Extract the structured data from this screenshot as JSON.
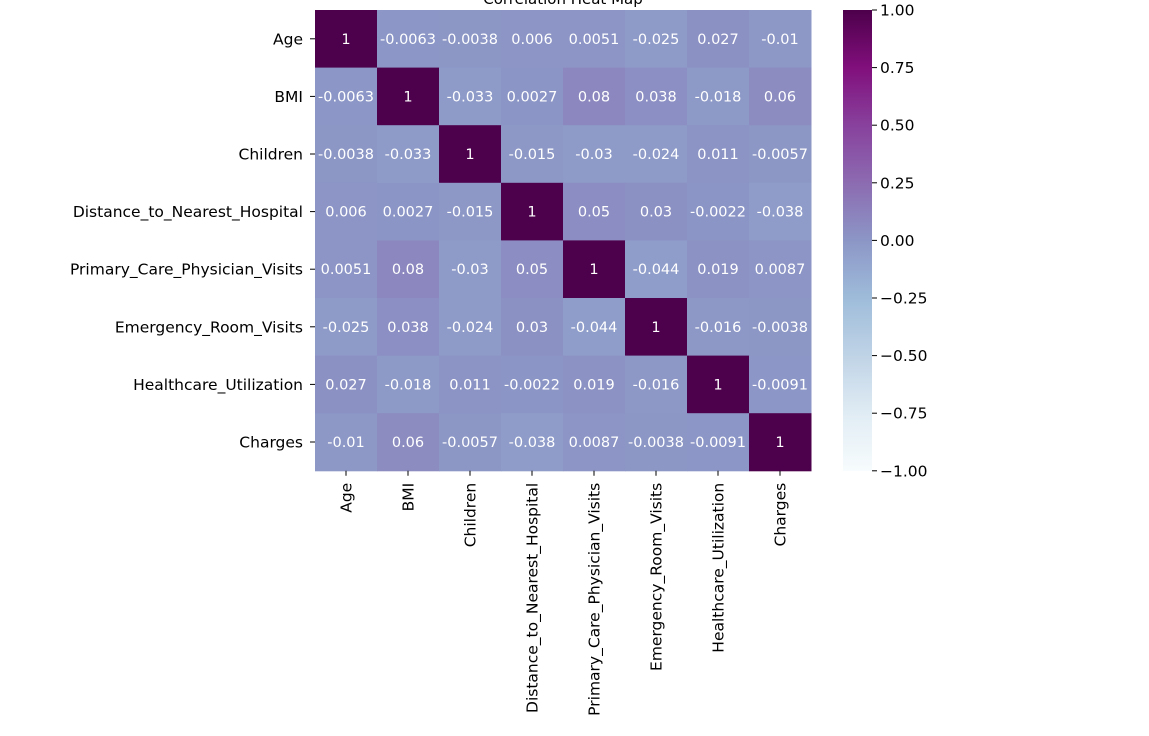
{
  "chart_data": {
    "type": "heatmap",
    "title": "Correlation Heat Map",
    "labels": [
      "Age",
      "BMI",
      "Children",
      "Distance_to_Nearest_Hospital",
      "Primary_Care_Physician_Visits",
      "Emergency_Room_Visits",
      "Healthcare_Utilization",
      "Charges"
    ],
    "values": [
      [
        1,
        -0.0063,
        -0.0038,
        0.006,
        0.0051,
        -0.025,
        0.027,
        -0.01
      ],
      [
        -0.0063,
        1,
        -0.033,
        0.0027,
        0.08,
        0.038,
        -0.018,
        0.06
      ],
      [
        -0.0038,
        -0.033,
        1,
        -0.015,
        -0.03,
        -0.024,
        0.011,
        -0.0057
      ],
      [
        0.006,
        0.0027,
        -0.015,
        1,
        0.05,
        0.03,
        -0.0022,
        -0.038
      ],
      [
        0.0051,
        0.08,
        -0.03,
        0.05,
        1,
        -0.044,
        0.019,
        0.0087
      ],
      [
        -0.025,
        0.038,
        -0.024,
        0.03,
        -0.044,
        1,
        -0.016,
        -0.0038
      ],
      [
        0.027,
        -0.018,
        0.011,
        -0.0022,
        0.019,
        -0.016,
        1,
        -0.0091
      ],
      [
        -0.01,
        0.06,
        -0.0057,
        -0.038,
        0.0087,
        -0.0038,
        -0.0091,
        1
      ]
    ],
    "colorbar": {
      "range": [
        -1,
        1
      ],
      "ticks": [
        "1.00",
        "0.75",
        "0.50",
        "0.25",
        "0.00",
        "−0.25",
        "−0.50",
        "−0.75",
        "−1.00"
      ],
      "tick_values": [
        1,
        0.75,
        0.5,
        0.25,
        0,
        -0.25,
        -0.5,
        -0.75,
        -1
      ]
    },
    "colormap": "BuPu",
    "annotations": true
  }
}
